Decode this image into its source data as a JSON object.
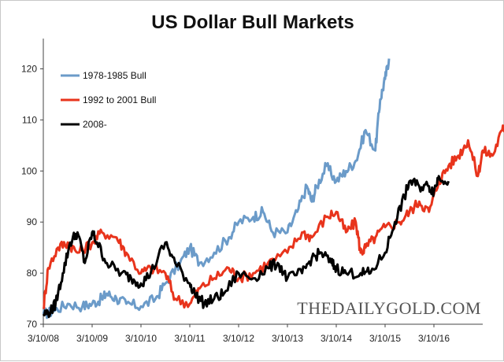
{
  "chart_data": {
    "type": "line",
    "title": "US Dollar Bull Markets",
    "xlabel": "",
    "ylabel": "",
    "ylim": [
      70,
      125
    ],
    "y_ticks": [
      70,
      80,
      90,
      100,
      110,
      120
    ],
    "x_tick_labels": [
      "3/10/08",
      "3/10/09",
      "3/10/10",
      "3/10/11",
      "3/10/12",
      "3/10/13",
      "3/10/14",
      "3/10/15",
      "3/10/16"
    ],
    "x_range_years": [
      0,
      9
    ],
    "grid": false,
    "legend_position": "top-left",
    "watermark": "THEDAILYGOLD.COM",
    "series": [
      {
        "name": "1978-1985 Bull",
        "color": "#6b9bc9",
        "points": [
          [
            0,
            72
          ],
          [
            0.2,
            72.5
          ],
          [
            0.5,
            74
          ],
          [
            0.8,
            73.5
          ],
          [
            1.0,
            74
          ],
          [
            1.2,
            75
          ],
          [
            1.3,
            76
          ],
          [
            1.5,
            75
          ],
          [
            1.7,
            74
          ],
          [
            2.0,
            73.5
          ],
          [
            2.3,
            75
          ],
          [
            2.5,
            78
          ],
          [
            2.8,
            82
          ],
          [
            3.0,
            85
          ],
          [
            3.2,
            82
          ],
          [
            3.5,
            84
          ],
          [
            3.8,
            87
          ],
          [
            4.0,
            90
          ],
          [
            4.3,
            91
          ],
          [
            4.5,
            92
          ],
          [
            4.7,
            88
          ],
          [
            5.0,
            88
          ],
          [
            5.2,
            92
          ],
          [
            5.4,
            97
          ],
          [
            5.5,
            94
          ],
          [
            5.6,
            97
          ],
          [
            5.8,
            101
          ],
          [
            6.0,
            98
          ],
          [
            6.2,
            100
          ],
          [
            6.4,
            102
          ],
          [
            6.6,
            108
          ],
          [
            6.8,
            104
          ],
          [
            6.9,
            114
          ],
          [
            7.0,
            118
          ],
          [
            7.08,
            122
          ]
        ]
      },
      {
        "name": "1992 to 2001 Bull",
        "color": "#e8341c",
        "points": [
          [
            0,
            73
          ],
          [
            0.1,
            81
          ],
          [
            0.3,
            85
          ],
          [
            0.5,
            86
          ],
          [
            0.7,
            84
          ],
          [
            1.0,
            86
          ],
          [
            1.2,
            88
          ],
          [
            1.5,
            87
          ],
          [
            1.7,
            84
          ],
          [
            2.0,
            80
          ],
          [
            2.2,
            81
          ],
          [
            2.5,
            80
          ],
          [
            2.7,
            75
          ],
          [
            3.0,
            74
          ],
          [
            3.2,
            77
          ],
          [
            3.5,
            79
          ],
          [
            3.8,
            81
          ],
          [
            4.0,
            79
          ],
          [
            4.3,
            80
          ],
          [
            4.6,
            82
          ],
          [
            5.0,
            84
          ],
          [
            5.3,
            88
          ],
          [
            5.5,
            87
          ],
          [
            5.8,
            91
          ],
          [
            6.0,
            92
          ],
          [
            6.2,
            88
          ],
          [
            6.4,
            90
          ],
          [
            6.5,
            84
          ],
          [
            6.6,
            85
          ],
          [
            6.8,
            87
          ],
          [
            7.0,
            89
          ],
          [
            7.3,
            90
          ],
          [
            7.5,
            92
          ],
          [
            7.7,
            94
          ],
          [
            7.9,
            92
          ],
          [
            8.1,
            98
          ],
          [
            8.3,
            101
          ],
          [
            8.5,
            103
          ],
          [
            8.7,
            106
          ],
          [
            8.9,
            99
          ],
          [
            9.0,
            104
          ],
          [
            9.2,
            103
          ],
          [
            9.4,
            108
          ],
          [
            9.5,
            109
          ]
        ]
      },
      {
        "name": "2008-",
        "color": "#000000",
        "points": [
          [
            0,
            72
          ],
          [
            0.15,
            72.5
          ],
          [
            0.25,
            74
          ],
          [
            0.4,
            80
          ],
          [
            0.55,
            86
          ],
          [
            0.7,
            88
          ],
          [
            0.85,
            82
          ],
          [
            1.0,
            88
          ],
          [
            1.1,
            86
          ],
          [
            1.3,
            82
          ],
          [
            1.6,
            80
          ],
          [
            1.8,
            79
          ],
          [
            2.0,
            78
          ],
          [
            2.2,
            80
          ],
          [
            2.5,
            86
          ],
          [
            2.7,
            82
          ],
          [
            3.0,
            78
          ],
          [
            3.1,
            76
          ],
          [
            3.3,
            74
          ],
          [
            3.5,
            75
          ],
          [
            3.7,
            76
          ],
          [
            4.0,
            80
          ],
          [
            4.3,
            79
          ],
          [
            4.6,
            81
          ],
          [
            4.8,
            82
          ],
          [
            5.0,
            79
          ],
          [
            5.3,
            80
          ],
          [
            5.5,
            83
          ],
          [
            5.7,
            84
          ],
          [
            5.9,
            82
          ],
          [
            6.0,
            81
          ],
          [
            6.2,
            80
          ],
          [
            6.5,
            80
          ],
          [
            6.7,
            80
          ],
          [
            7.0,
            84
          ],
          [
            7.2,
            90
          ],
          [
            7.4,
            95
          ],
          [
            7.5,
            98
          ],
          [
            7.7,
            97
          ],
          [
            7.9,
            97
          ],
          [
            8.0,
            96
          ],
          [
            8.1,
            99
          ],
          [
            8.3,
            98
          ]
        ]
      }
    ]
  }
}
